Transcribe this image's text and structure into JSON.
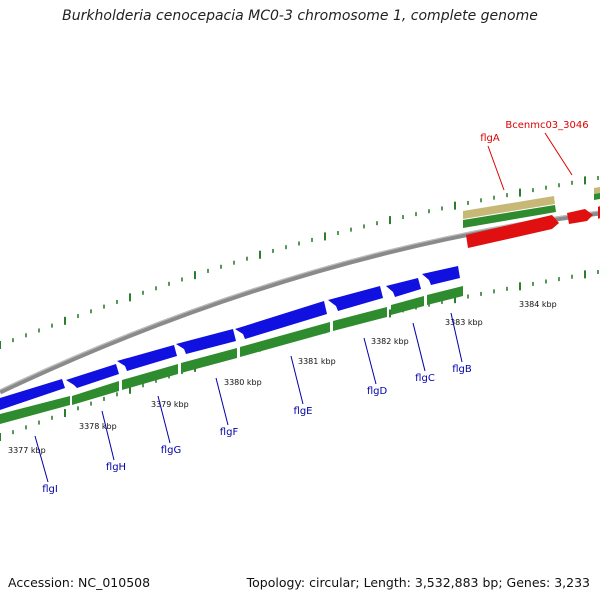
{
  "title": "Burkholderia cenocepacia MC0-3 chromosome 1, complete genome",
  "footer": {
    "accession": "Accession: NC_010508",
    "stats": "Topology: circular; Length: 3,532,883 bp; Genes: 3,233"
  },
  "colors": {
    "forward_gene": "#e01010",
    "reverse_gene": "#1010e0",
    "cds_track": "#2e8b2e",
    "backbone": "#8c8c8c",
    "feature_tan": "#c8b878",
    "forward_label": "#dd0000",
    "reverse_label": "#0000aa"
  },
  "scale_ticks": [
    "3377 kbp",
    "3378 kbp",
    "3379 kbp",
    "3380 kbp",
    "3381 kbp",
    "3382 kbp",
    "3383 kbp",
    "3384 kbp"
  ],
  "genes_reverse": [
    "flgI",
    "flgH",
    "flgG",
    "flgF",
    "flgE",
    "flgD",
    "flgC",
    "flgB"
  ],
  "genes_forward": [
    "flgA",
    "Bcenmc03_3046"
  ]
}
